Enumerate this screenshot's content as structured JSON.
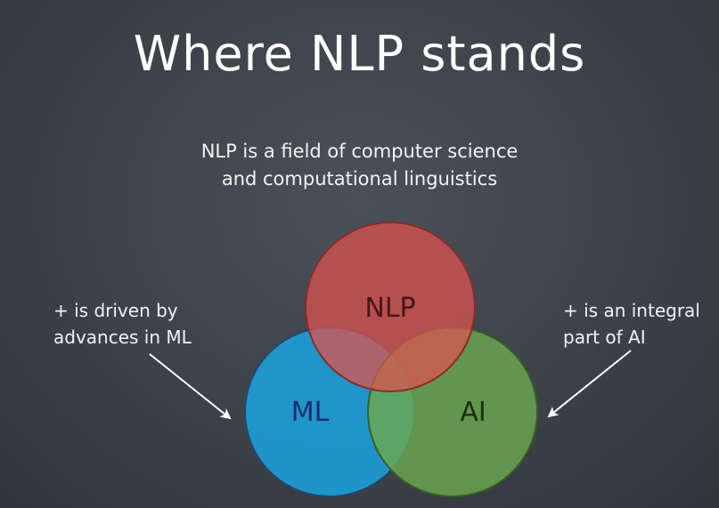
{
  "slide": {
    "title": "Where NLP stands",
    "subtitle_lines": [
      "NLP is a field of computer science",
      "and computational linguistics"
    ]
  },
  "venn": {
    "circles": [
      {
        "label": "NLP",
        "color": "#d9534f",
        "label_color": "#4a1515"
      },
      {
        "label": "ML",
        "color": "#1ba3e0",
        "label_color": "#1a2a6e"
      },
      {
        "label": "AI",
        "color": "#6aa84f",
        "label_color": "#1f2e12"
      }
    ]
  },
  "notes": {
    "left_lines": [
      "+ is driven by",
      "advances in ML"
    ],
    "right_lines": [
      "+ is an integral",
      "part of AI"
    ]
  },
  "colors": {
    "background": "#3d4249",
    "text": "#ffffff",
    "arrow": "#ffffff"
  }
}
